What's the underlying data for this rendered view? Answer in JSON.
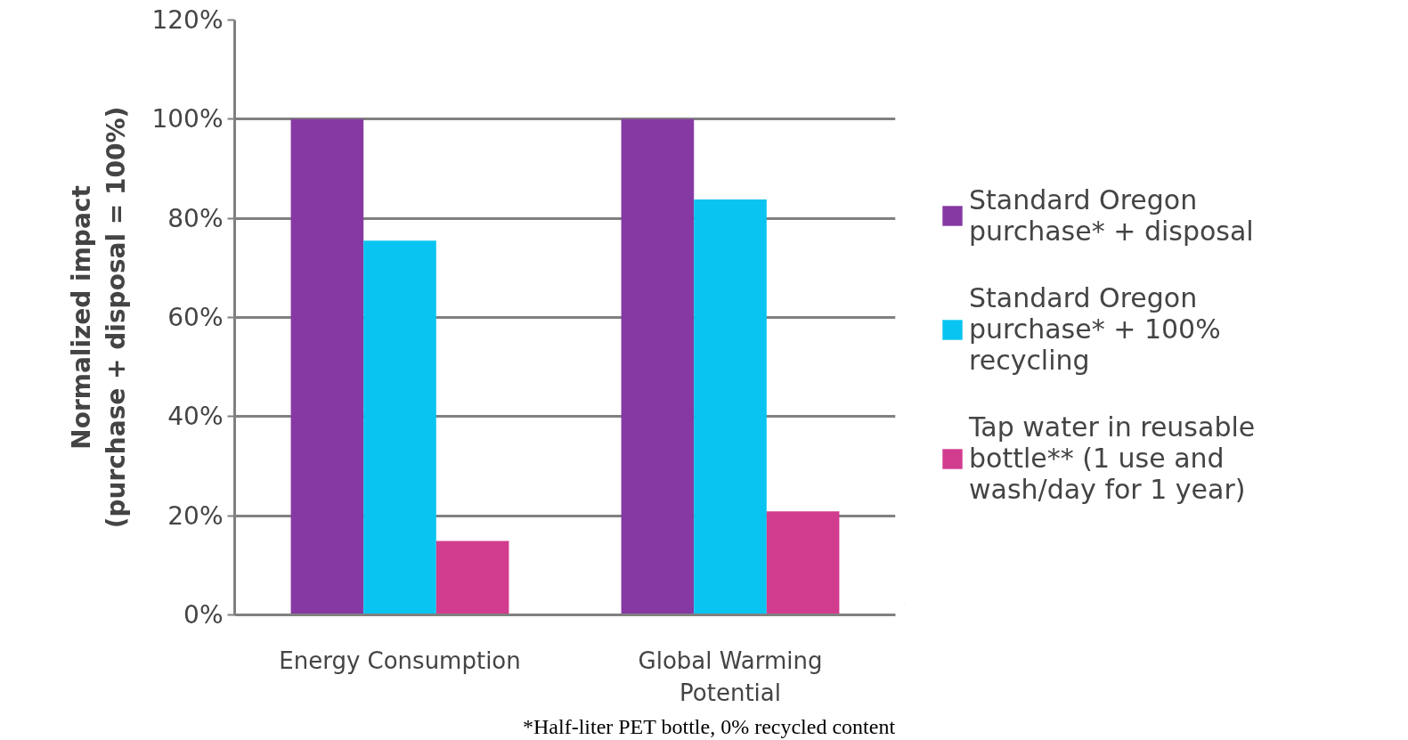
{
  "chart_data": {
    "type": "bar",
    "ylabel": "Normalized impact\n(purchase + disposal = 100%)",
    "categories": [
      "Energy Consumption",
      "Global Warming Potential"
    ],
    "series": [
      {
        "name": "Standard Oregon purchase* + disposal",
        "color": "#8639a3",
        "values": [
          100,
          100
        ]
      },
      {
        "name": "Standard Oregon purchase* + 100% recycling",
        "color": "#09c4f0",
        "values": [
          75.5,
          83.8
        ]
      },
      {
        "name": "Tap water in reusable bottle** (1 use and wash/day for 1 year)",
        "color": "#d23c8f",
        "values": [
          14.9,
          20.9
        ]
      }
    ],
    "ylim": [
      0,
      120
    ],
    "yticks": [
      {
        "value": 0,
        "label": "0%"
      },
      {
        "value": 20,
        "label": "20%"
      },
      {
        "value": 40,
        "label": "40%"
      },
      {
        "value": 60,
        "label": "60%"
      },
      {
        "value": 80,
        "label": "80%"
      },
      {
        "value": 100,
        "label": "100%"
      },
      {
        "value": 120,
        "label": "120%"
      }
    ],
    "grid": "y",
    "legend": "right",
    "annotations": [
      "*Half-liter PET bottle, 0% recycled content"
    ]
  }
}
